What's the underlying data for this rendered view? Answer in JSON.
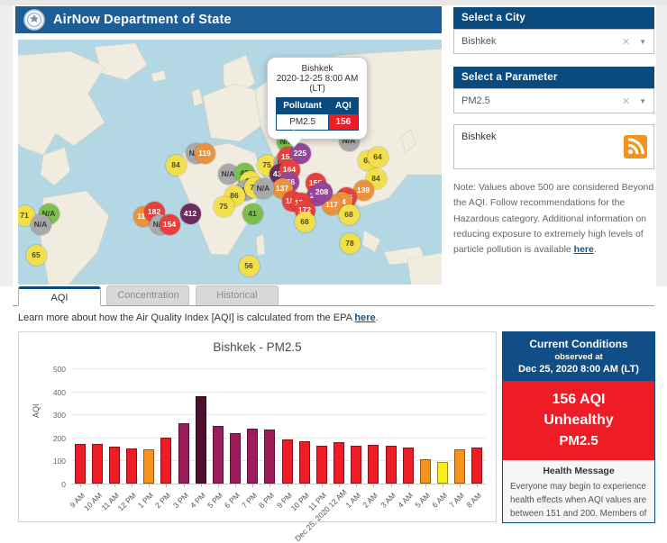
{
  "header": {
    "title": "AirNow Department of State"
  },
  "sidebar": {
    "city_panel": {
      "label": "Select a City",
      "value": "Bishkek"
    },
    "parameter_panel": {
      "label": "Select a Parameter",
      "value": "PM2.5"
    },
    "rss_box": {
      "text": "Bishkek"
    },
    "note": {
      "text": "Note: Values above 500 are considered Beyond the AQI. Follow recommendations for the Hazardous category. Additional information on reducing exposure to extremely high levels of particle pollution is available ",
      "link_text": "here",
      "suffix": "."
    }
  },
  "map": {
    "popup": {
      "city": "Bishkek",
      "datetime": "2020-12-25 8:00 AM",
      "tz": "(LT)",
      "table": {
        "headers": [
          "Pollutant",
          "AQI"
        ],
        "row": {
          "pollutant": "PM2.5",
          "aqi": "156"
        }
      }
    },
    "markers": [
      {
        "v": "N/A",
        "x": 367,
        "y": 112,
        "level": "na"
      },
      {
        "v": "69",
        "x": 388,
        "y": 134,
        "level": "yellow"
      },
      {
        "v": "64",
        "x": 399,
        "y": 130,
        "level": "yellow"
      },
      {
        "v": "84",
        "x": 397,
        "y": 154,
        "level": "yellow"
      },
      {
        "v": "139",
        "x": 383,
        "y": 167,
        "level": "orange"
      },
      {
        "v": "175",
        "x": 364,
        "y": 175,
        "level": "red"
      },
      {
        "v": "94",
        "x": 359,
        "y": 180,
        "level": "orange"
      },
      {
        "v": "117",
        "x": 348,
        "y": 183,
        "level": "orange"
      },
      {
        "v": "68",
        "x": 367,
        "y": 194,
        "level": "yellow"
      },
      {
        "v": "78",
        "x": 368,
        "y": 226,
        "level": "yellow"
      },
      {
        "v": "56",
        "x": 256,
        "y": 251,
        "level": "yellow"
      },
      {
        "v": "N/A",
        "x": 298,
        "y": 113,
        "level": "green"
      },
      {
        "v": "75",
        "x": 276,
        "y": 139,
        "level": "yellow"
      },
      {
        "v": "N/A",
        "x": 295,
        "y": 136,
        "level": "na"
      },
      {
        "v": "151",
        "x": 299,
        "y": 130,
        "level": "red"
      },
      {
        "v": "225",
        "x": 313,
        "y": 126,
        "level": "purple"
      },
      {
        "v": "430",
        "x": 290,
        "y": 149,
        "level": "maroon"
      },
      {
        "v": "164",
        "x": 301,
        "y": 144,
        "level": "red"
      },
      {
        "v": "276",
        "x": 300,
        "y": 158,
        "level": "purple"
      },
      {
        "v": "137",
        "x": 293,
        "y": 165,
        "level": "orange"
      },
      {
        "v": "155",
        "x": 330,
        "y": 159,
        "level": "red"
      },
      {
        "v": "250",
        "x": 331,
        "y": 173,
        "level": "purple"
      },
      {
        "v": "208",
        "x": 337,
        "y": 169,
        "level": "purple"
      },
      {
        "v": "188",
        "x": 304,
        "y": 179,
        "level": "red"
      },
      {
        "v": "153",
        "x": 314,
        "y": 181,
        "level": "red"
      },
      {
        "v": "172",
        "x": 318,
        "y": 189,
        "level": "red"
      },
      {
        "v": "68",
        "x": 318,
        "y": 202,
        "level": "yellow"
      },
      {
        "v": "N/A",
        "x": 233,
        "y": 149,
        "level": "na"
      },
      {
        "v": "48",
        "x": 251,
        "y": 148,
        "level": "green"
      },
      {
        "v": "91",
        "x": 257,
        "y": 157,
        "level": "yellow"
      },
      {
        "v": "N/A",
        "x": 252,
        "y": 167,
        "level": "na"
      },
      {
        "v": "77",
        "x": 262,
        "y": 164,
        "level": "yellow"
      },
      {
        "v": "N/A",
        "x": 272,
        "y": 165,
        "level": "na"
      },
      {
        "v": "86",
        "x": 240,
        "y": 173,
        "level": "yellow"
      },
      {
        "v": "75",
        "x": 228,
        "y": 185,
        "level": "yellow"
      },
      {
        "v": "41",
        "x": 260,
        "y": 193,
        "level": "green"
      },
      {
        "v": "84",
        "x": 175,
        "y": 139,
        "level": "yellow"
      },
      {
        "v": "N/A",
        "x": 197,
        "y": 126,
        "level": "na"
      },
      {
        "v": "119",
        "x": 207,
        "y": 126,
        "level": "orange"
      },
      {
        "v": "117",
        "x": 139,
        "y": 196,
        "level": "orange"
      },
      {
        "v": "182",
        "x": 151,
        "y": 191,
        "level": "red"
      },
      {
        "v": "N/A",
        "x": 157,
        "y": 205,
        "level": "na"
      },
      {
        "v": "154",
        "x": 168,
        "y": 205,
        "level": "red"
      },
      {
        "v": "412",
        "x": 191,
        "y": 193,
        "level": "maroon"
      },
      {
        "v": "71",
        "x": 7,
        "y": 195,
        "level": "yellow"
      },
      {
        "v": "N/A",
        "x": 34,
        "y": 193,
        "level": "green"
      },
      {
        "v": "N/A",
        "x": 25,
        "y": 205,
        "level": "na"
      },
      {
        "v": "65",
        "x": 20,
        "y": 239,
        "level": "yellow"
      }
    ]
  },
  "tabs": [
    {
      "label": "AQI",
      "active": true
    },
    {
      "label": "Concentration",
      "active": false
    },
    {
      "label": "Historical",
      "active": false
    }
  ],
  "learn_more": {
    "text": "Learn more about how the Air Quality Index [AQI] is calculated from the EPA ",
    "link_text": "here",
    "suffix": "."
  },
  "chart_data": {
    "type": "bar",
    "title": "Bishkek - PM2.5",
    "xlabel": "",
    "ylabel": "AQI",
    "ylim": [
      0,
      500
    ],
    "yticks": [
      0,
      100,
      200,
      300,
      400,
      500
    ],
    "grid": true,
    "categories": [
      "9 AM",
      "10 AM",
      "11 AM",
      "12 PM",
      "1 PM",
      "2 PM",
      "3 PM",
      "4 PM",
      "5 PM",
      "6 PM",
      "7 PM",
      "8 PM",
      "9 PM",
      "10 PM",
      "11 PM",
      "Dec 25, 2020 12 AM",
      "1 AM",
      "2 AM",
      "3 AM",
      "4 AM",
      "5 AM",
      "6 AM",
      "7 AM",
      "8 AM"
    ],
    "values": [
      170,
      170,
      162,
      153,
      150,
      200,
      260,
      380,
      252,
      220,
      240,
      235,
      190,
      183,
      165,
      180,
      165,
      168,
      165,
      155,
      105,
      95,
      148,
      156
    ],
    "aqi_colors": {
      "green": "#00b050",
      "yellow": "#f8ef1b",
      "orange": "#f7941d",
      "red": "#ee1c25",
      "purple": "#9c1c5c",
      "maroon": "#4d102e"
    }
  },
  "current_conditions": {
    "title": "Current Conditions",
    "subtitle": "observed at",
    "datetime": "Dec 25, 2020 8:00 AM (LT)",
    "aqi": "156 AQI",
    "category": "Unhealthy",
    "pollutant": "PM2.5",
    "health_title": "Health Message",
    "health_text": "Everyone may begin to experience health effects when AQI values are between 151 and 200. Members of sensitive groups may experience more serious health effects."
  }
}
